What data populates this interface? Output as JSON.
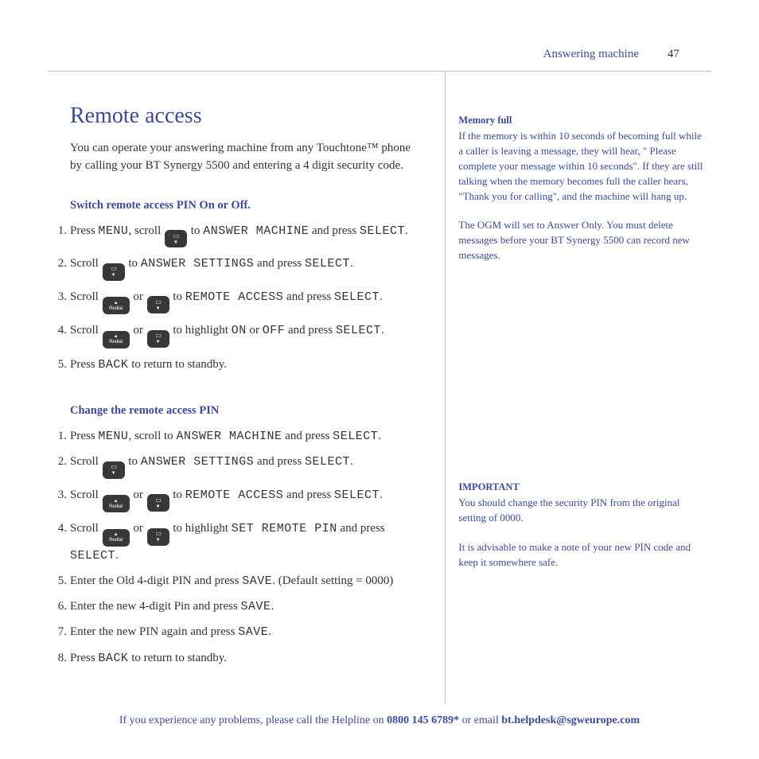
{
  "header": {
    "section": "Answering machine",
    "page": "47"
  },
  "main": {
    "title": "Remote access",
    "intro": "You can operate your answering machine from any Touchtone™ phone by calling your BT Synergy 5500 and entering a 4 digit security code.",
    "sec1": {
      "head": "Switch remote access PIN On or Off.",
      "s1a": "Press ",
      "s1b": ", scroll ",
      "s1c": " to ",
      "s1d": " and press ",
      "s1e": ".",
      "menu": "MENU",
      "am": "ANSWER MACHINE",
      "select": "SELECT",
      "s2a": "Scroll ",
      "s2b": " to ",
      "s2c": " and press ",
      "as": "ANSWER SETTINGS",
      "s3a": "Scroll ",
      "s3or": " or ",
      "s3b": " to ",
      "ra": "REMOTE ACCESS",
      "s4a": "Scroll ",
      "s4b": " to highlight ",
      "on": "ON",
      "off": "OFF",
      "s5a": "Press ",
      "back": "BACK",
      "s5b": " to return to standby."
    },
    "sec2": {
      "head": "Change the remote access PIN",
      "s1a": "Press ",
      "s1b": ", scroll  to ",
      "s1c": " and press ",
      "s4b": " to highlight ",
      "srp": "SET REMOTE PIN",
      "s5": "Enter the Old 4-digit PIN and press ",
      "save": "SAVE",
      "s5b": ". (Default setting = 0000)",
      "s6": "Enter the new 4-digit Pin and press ",
      "s7": "Enter the new PIN again and press ",
      "s8a": "Press ",
      "s8b": " to return to standby."
    }
  },
  "side": {
    "b1head": "Memory full",
    "b1": "If the memory is within 10 seconds of becoming full while a caller is leaving a message, they will hear, \" Please complete your message within 10 seconds\". If they are still talking when the memory becomes full the caller hears, \"Thank you for calling\", and the machine will hang up.",
    "b2": "The OGM will set to Answer Only. You must delete messages before your BT Synergy 5500 can record new messages.",
    "b3head": "IMPORTANT",
    "b3": "You should change the security PIN from the original setting of 0000.",
    "b4": "It is advisable to make a note of your new PIN code and keep it somewhere safe."
  },
  "footer": {
    "a": "If you experience any problems, please call the Helpline on ",
    "phone": "0800 145 6789*",
    "b": " or email ",
    "email": "bt.helpdesk@sgweurope.com"
  }
}
